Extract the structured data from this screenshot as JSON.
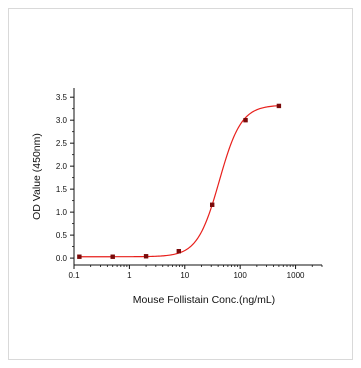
{
  "chart_data": {
    "type": "scatter",
    "title": "",
    "xlabel": "Mouse Follistain Conc.(ng/mL)",
    "ylabel": "OD Value (450nm)",
    "x_scale": "log",
    "xlim": [
      0.1,
      3000
    ],
    "ylim": [
      -0.15,
      3.7
    ],
    "x_ticks": [
      0.1,
      1,
      10,
      100,
      1000
    ],
    "x_tick_labels": [
      "0.1",
      "1",
      "10",
      "100",
      "1000"
    ],
    "y_ticks": [
      0.0,
      0.5,
      1.0,
      1.5,
      2.0,
      2.5,
      3.0,
      3.5
    ],
    "y_tick_labels": [
      "0.0",
      "0.5",
      "1.0",
      "1.5",
      "2.0",
      "2.5",
      "3.0",
      "3.5"
    ],
    "grid": false,
    "legend": "none",
    "series": [
      {
        "x": [
          0.125,
          0.5,
          2,
          7.8,
          31.25,
          125,
          500
        ],
        "y": [
          0.03,
          0.03,
          0.04,
          0.15,
          1.16,
          3.0,
          3.31
        ]
      }
    ],
    "fit_curve": {
      "model": "4PL",
      "bottom": 0.03,
      "top": 3.33,
      "ec50": 42,
      "hill": 2.2
    },
    "colors": {
      "curve": "#e8201c",
      "points": "#7a0a0a",
      "axis": "#111111"
    }
  }
}
